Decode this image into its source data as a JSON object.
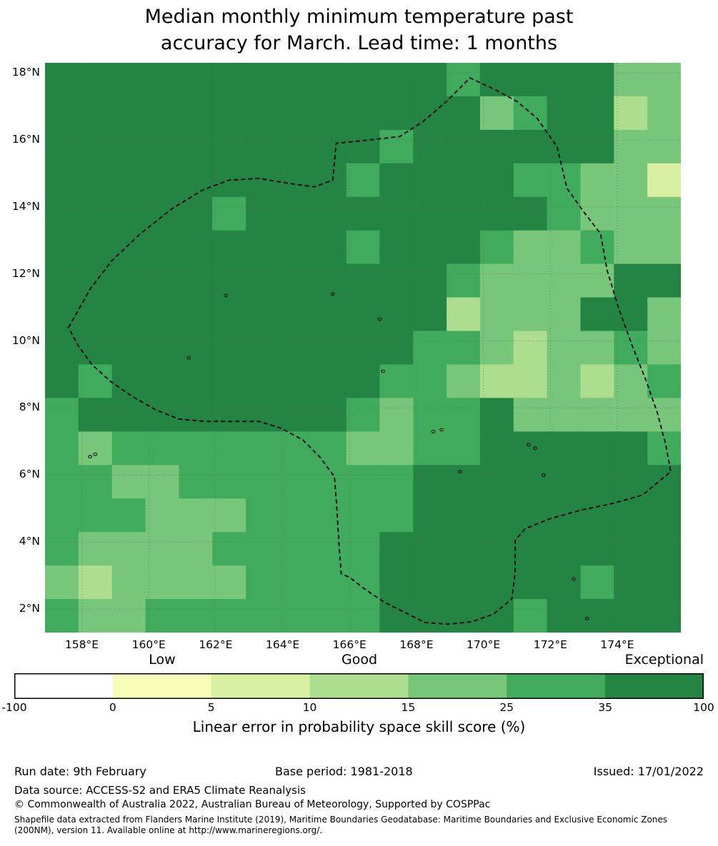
{
  "title": {
    "line1": "Median monthly minimum temperature past",
    "line2": "accuracy for March. Lead time: 1 months"
  },
  "map_axes": {
    "lat_tick_labels": [
      "18°N",
      "16°N",
      "14°N",
      "12°N",
      "10°N",
      "8°N",
      "6°N",
      "4°N",
      "2°N"
    ],
    "lat_tick_values": [
      18,
      16,
      14,
      12,
      10,
      8,
      6,
      4,
      2
    ],
    "lon_tick_labels": [
      "158°E",
      "160°E",
      "162°E",
      "164°E",
      "166°E",
      "168°E",
      "170°E",
      "172°E",
      "174°E"
    ],
    "lon_tick_values": [
      158,
      160,
      162,
      164,
      166,
      168,
      170,
      172,
      174
    ]
  },
  "chart_data": {
    "type": "heatmap",
    "title": "Median monthly minimum temperature past accuracy for March. Lead time: 1 months",
    "xlabel": "Longitude (°E)",
    "ylabel": "Latitude (°N)",
    "lon_range": [
      156.9,
      175.9
    ],
    "lat_range": [
      1.3,
      18.3
    ],
    "cell_size_deg": 1,
    "value_bins": [
      -100,
      0,
      5,
      10,
      15,
      25,
      35,
      100
    ],
    "colors": [
      "#ffffff",
      "#f7fcb9",
      "#d9f0a3",
      "#addd8e",
      "#78c679",
      "#41ab5d",
      "#238443"
    ],
    "grid_legend": "each character is a color-bin index 0-6 for one 1-degree cell, columns run west to east from 156.9E, rows run north to south from 18.3N",
    "grid_rows_top_to_bottom": [
      "6666666666665666644",
      "6666666666666456634",
      "6666666666566666644",
      "6666666665666655442",
      "6666656666666665444",
      "6666666665666544544",
      "6666666666665444466",
      "6666666666663444664",
      "6666666666655434454",
      "6566666666554334345",
      "5666666665455644444",
      "5455555554455666665",
      "5544555555566666666",
      "5554445555566666666",
      "5444455555666666666",
      "4344445555666666566",
      "5445555555666656666"
    ],
    "boundary_polygon_lonlat": [
      [
        157.6,
        10.4
      ],
      [
        158.25,
        11.55
      ],
      [
        158.9,
        12.4
      ],
      [
        159.75,
        13.2
      ],
      [
        160.7,
        13.95
      ],
      [
        161.6,
        14.5
      ],
      [
        162.4,
        14.8
      ],
      [
        163.3,
        14.85
      ],
      [
        164.2,
        14.7
      ],
      [
        164.95,
        14.6
      ],
      [
        165.5,
        14.8
      ],
      [
        165.6,
        15.9
      ],
      [
        166.6,
        16.0
      ],
      [
        167.5,
        16.1
      ],
      [
        168.2,
        16.55
      ],
      [
        168.9,
        17.15
      ],
      [
        169.6,
        17.85
      ],
      [
        170.35,
        17.5
      ],
      [
        171.0,
        17.15
      ],
      [
        171.6,
        16.65
      ],
      [
        172.2,
        15.8
      ],
      [
        172.5,
        14.55
      ],
      [
        173.0,
        13.85
      ],
      [
        173.5,
        13.2
      ],
      [
        173.7,
        12.1
      ],
      [
        174.05,
        10.95
      ],
      [
        174.45,
        9.85
      ],
      [
        174.85,
        8.85
      ],
      [
        175.2,
        7.85
      ],
      [
        175.45,
        6.9
      ],
      [
        175.6,
        6.1
      ],
      [
        174.75,
        5.4
      ],
      [
        173.85,
        5.15
      ],
      [
        172.9,
        4.95
      ],
      [
        172.0,
        4.7
      ],
      [
        171.25,
        4.4
      ],
      [
        170.95,
        4.05
      ],
      [
        170.95,
        3.1
      ],
      [
        170.85,
        2.3
      ],
      [
        170.3,
        1.85
      ],
      [
        169.65,
        1.62
      ],
      [
        168.95,
        1.55
      ],
      [
        168.25,
        1.6
      ],
      [
        167.65,
        1.9
      ],
      [
        167.05,
        2.2
      ],
      [
        166.45,
        2.6
      ],
      [
        166.0,
        2.95
      ],
      [
        165.75,
        3.05
      ],
      [
        165.68,
        4.0
      ],
      [
        165.62,
        5.0
      ],
      [
        165.55,
        5.95
      ],
      [
        165.1,
        6.55
      ],
      [
        164.6,
        7.05
      ],
      [
        163.95,
        7.4
      ],
      [
        163.3,
        7.6
      ],
      [
        162.5,
        7.6
      ],
      [
        161.7,
        7.6
      ],
      [
        160.9,
        7.67
      ],
      [
        160.2,
        7.95
      ],
      [
        159.5,
        8.35
      ],
      [
        158.85,
        8.8
      ],
      [
        158.3,
        9.3
      ],
      [
        157.9,
        9.85
      ]
    ],
    "islands_lonlat": [
      [
        158.25,
        6.55
      ],
      [
        158.4,
        6.62
      ],
      [
        162.3,
        11.35
      ],
      [
        165.5,
        11.4
      ],
      [
        166.9,
        10.65
      ],
      [
        161.2,
        9.5
      ],
      [
        167.0,
        9.1
      ],
      [
        168.5,
        7.3
      ],
      [
        168.75,
        7.35
      ],
      [
        169.3,
        6.1
      ],
      [
        171.8,
        6.0
      ],
      [
        171.35,
        6.9
      ],
      [
        171.55,
        6.8
      ],
      [
        172.7,
        2.9
      ],
      [
        173.1,
        1.72
      ]
    ],
    "graticule_step_deg": 2,
    "legend_position": "bottom"
  },
  "colorbar": {
    "labels_above": [
      "Low",
      "Good",
      "Exceptional"
    ],
    "tick_labels": [
      "-100",
      "0",
      "5",
      "10",
      "15",
      "25",
      "35",
      "100"
    ],
    "segment_colors": [
      "#ffffff",
      "#f7fcb9",
      "#d9f0a3",
      "#addd8e",
      "#78c679",
      "#41ab5d",
      "#238443"
    ],
    "caption": "Linear error in probability space skill score (%)"
  },
  "footer": {
    "run_date": "Run date: 9th February",
    "base_period": "Base period: 1981-2018",
    "issued": "Issued: 17/01/2022",
    "data_source": "Data source: ACCESS-S2 and ERA5 Climate Reanalysis",
    "copyright": "© Commonwealth of Australia 2022, Australian Bureau of Meteorology, Supported by COSPPac",
    "shapefile_note": "Shapefile data extracted from Flanders Marine Institute (2019), Maritime Boundaries Geodatabase: Maritime Boundaries and Exclusive Economic Zones (200NM), version 11. Available online at http://www.marineregions.org/."
  }
}
